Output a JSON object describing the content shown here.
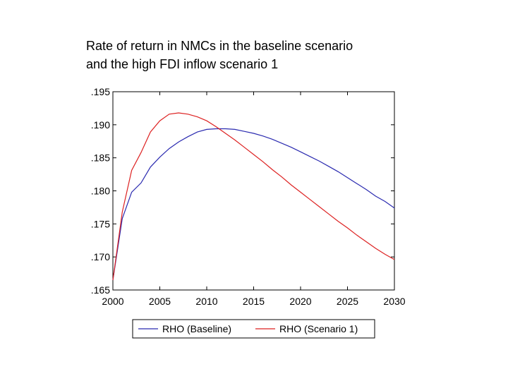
{
  "title": {
    "line1": "Rate of return in NMCs in the baseline scenario",
    "line2": "and the high FDI inflow scenario 1"
  },
  "chart_data": {
    "type": "line",
    "xlim": [
      2000,
      2030
    ],
    "ylim": [
      0.165,
      0.195
    ],
    "x_ticks": [
      2000,
      2005,
      2010,
      2015,
      2020,
      2025,
      2030
    ],
    "x_tick_labels": [
      "2000",
      "2005",
      "2010",
      "2015",
      "2020",
      "2025",
      "2030"
    ],
    "y_ticks": [
      0.165,
      0.17,
      0.175,
      0.18,
      0.185,
      0.19,
      0.195
    ],
    "y_tick_labels": [
      ".165",
      ".170",
      ".175",
      ".180",
      ".185",
      ".190",
      ".195"
    ],
    "grid": false,
    "legend_position": "bottom",
    "x": [
      2000,
      2001,
      2002,
      2003,
      2004,
      2005,
      2006,
      2007,
      2008,
      2009,
      2010,
      2011,
      2012,
      2013,
      2014,
      2015,
      2016,
      2017,
      2018,
      2019,
      2020,
      2021,
      2022,
      2023,
      2024,
      2025,
      2026,
      2027,
      2028,
      2029,
      2030
    ],
    "series": [
      {
        "name": "RHO (Baseline)",
        "color": "#2b2bb0",
        "values": [
          0.1665,
          0.1758,
          0.1798,
          0.1812,
          0.1836,
          0.1851,
          0.1864,
          0.1874,
          0.1882,
          0.1889,
          0.1893,
          0.1894,
          0.1894,
          0.1893,
          0.189,
          0.1887,
          0.1883,
          0.1878,
          0.1872,
          0.1866,
          0.1859,
          0.1852,
          0.1845,
          0.1837,
          0.1829,
          0.182,
          0.1811,
          0.1802,
          0.1792,
          0.1784,
          0.1774
        ]
      },
      {
        "name": "RHO (Scenario 1)",
        "color": "#dd2222",
        "values": [
          0.1665,
          0.1768,
          0.1831,
          0.1858,
          0.1889,
          0.1906,
          0.1916,
          0.1918,
          0.1916,
          0.1912,
          0.1906,
          0.1897,
          0.1887,
          0.1877,
          0.1866,
          0.1855,
          0.1844,
          0.1832,
          0.1821,
          0.1809,
          0.1798,
          0.1787,
          0.1776,
          0.1765,
          0.1754,
          0.1744,
          0.1733,
          0.1723,
          0.1713,
          0.1704,
          0.1696
        ]
      }
    ]
  }
}
